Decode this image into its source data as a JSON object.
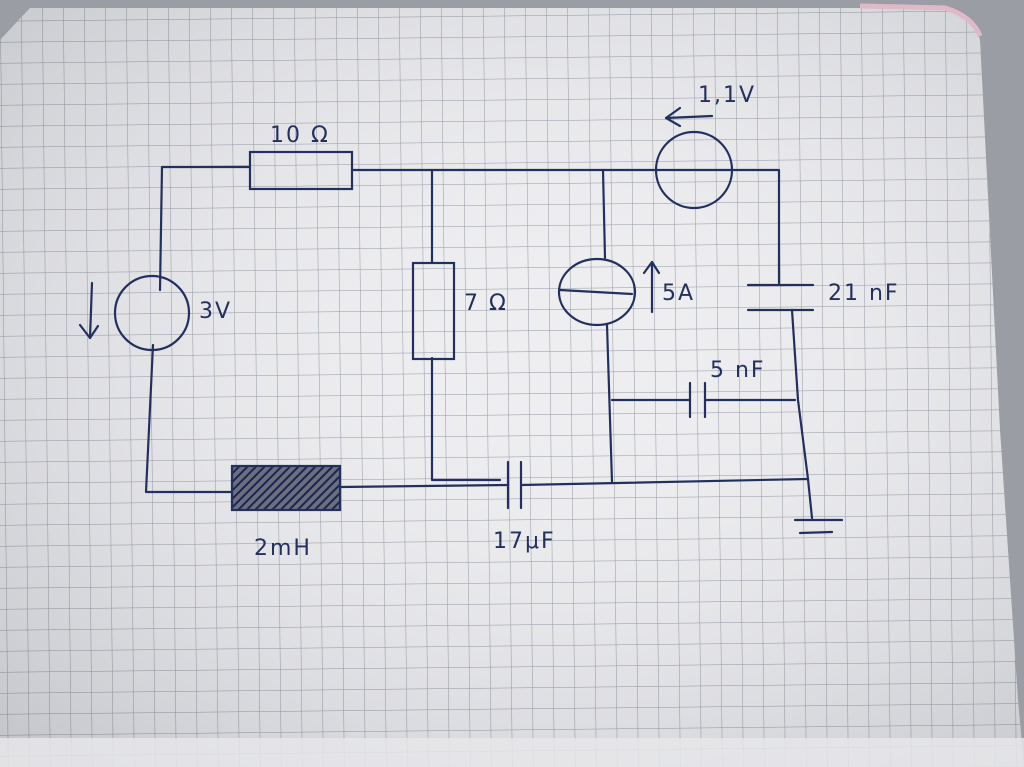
{
  "components": {
    "resistor_top": "10 Ω",
    "resistor_mid": "7 Ω",
    "voltage_source_left": "3V",
    "voltage_source_top": "1,1V",
    "current_source": "5A",
    "capacitor_right": "21 nF",
    "capacitor_inner": "5 nF",
    "capacitor_bottom": "17μF",
    "inductor": "2mH"
  },
  "colors": {
    "ink": "#23305e",
    "paper": "#f1f1f3",
    "grid": "#8e929e",
    "binding": "#e0b9c8"
  }
}
